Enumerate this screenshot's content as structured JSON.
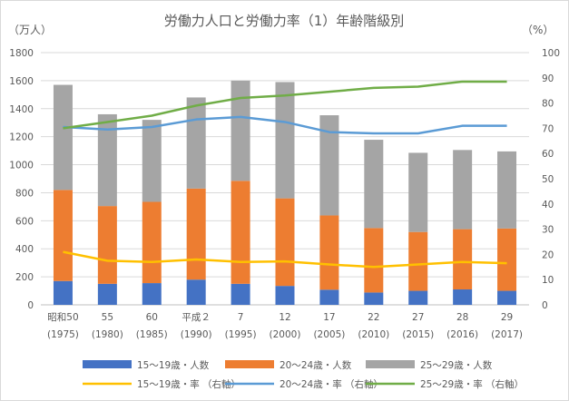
{
  "chart_data": {
    "type": "bar",
    "title": "労働力人口と労働力率（1）年齢階級別",
    "y_left_unit": "（万人）",
    "y_right_unit": "（%）",
    "y_left_range": [
      0,
      1800
    ],
    "y_right_range": [
      0,
      100
    ],
    "y_left_ticks": [
      "0",
      "200",
      "400",
      "600",
      "800",
      "1000",
      "1200",
      "1400",
      "1600",
      "1800"
    ],
    "y_right_ticks": [
      "0",
      "10",
      "20",
      "30",
      "40",
      "50",
      "60",
      "70",
      "80",
      "90",
      "100"
    ],
    "categories": [
      {
        "label": "昭和50",
        "sub": "(1975)"
      },
      {
        "label": "55",
        "sub": "(1980)"
      },
      {
        "label": "60",
        "sub": "(1985)"
      },
      {
        "label": "平成２",
        "sub": "(1990)"
      },
      {
        "label": "7",
        "sub": "(1995)"
      },
      {
        "label": "12",
        "sub": "(2000)"
      },
      {
        "label": "17",
        "sub": "(2005)"
      },
      {
        "label": "22",
        "sub": "(2010)"
      },
      {
        "label": "27",
        "sub": "(2015)"
      },
      {
        "label": "28",
        "sub": "(2016)"
      },
      {
        "label": "29",
        "sub": "(2017)"
      }
    ],
    "bar_series": [
      {
        "name": "15～19歳・人数",
        "color": "#4472c4",
        "values": [
          170,
          150,
          155,
          180,
          150,
          135,
          108,
          88,
          100,
          110,
          100
        ]
      },
      {
        "name": "20～24歳・人数",
        "color": "#ed7d31",
        "values": [
          650,
          555,
          580,
          650,
          735,
          625,
          530,
          460,
          420,
          430,
          445
        ]
      },
      {
        "name": "25～29歳・人数",
        "color": "#a5a5a5",
        "values": [
          750,
          655,
          585,
          650,
          715,
          830,
          715,
          630,
          565,
          565,
          550
        ]
      }
    ],
    "line_series": [
      {
        "name": "15～19歳・率 （右軸）",
        "color": "#ffc000",
        "values": [
          21,
          17.5,
          17,
          18,
          17,
          17.2,
          16,
          15,
          16,
          17,
          16.5
        ]
      },
      {
        "name": "20～24歳・率 （右軸）",
        "color": "#5b9bd5",
        "values": [
          70.5,
          69.5,
          70.5,
          73.5,
          74.5,
          72.5,
          68.5,
          68,
          68,
          71,
          71
        ]
      },
      {
        "name": "25～29歳・率 （右軸）",
        "color": "#70ad47",
        "values": [
          70,
          72.5,
          75,
          79,
          82,
          83,
          84.5,
          86,
          86.5,
          88.5,
          88.5
        ]
      }
    ],
    "grid": true,
    "legend_position": "bottom"
  }
}
